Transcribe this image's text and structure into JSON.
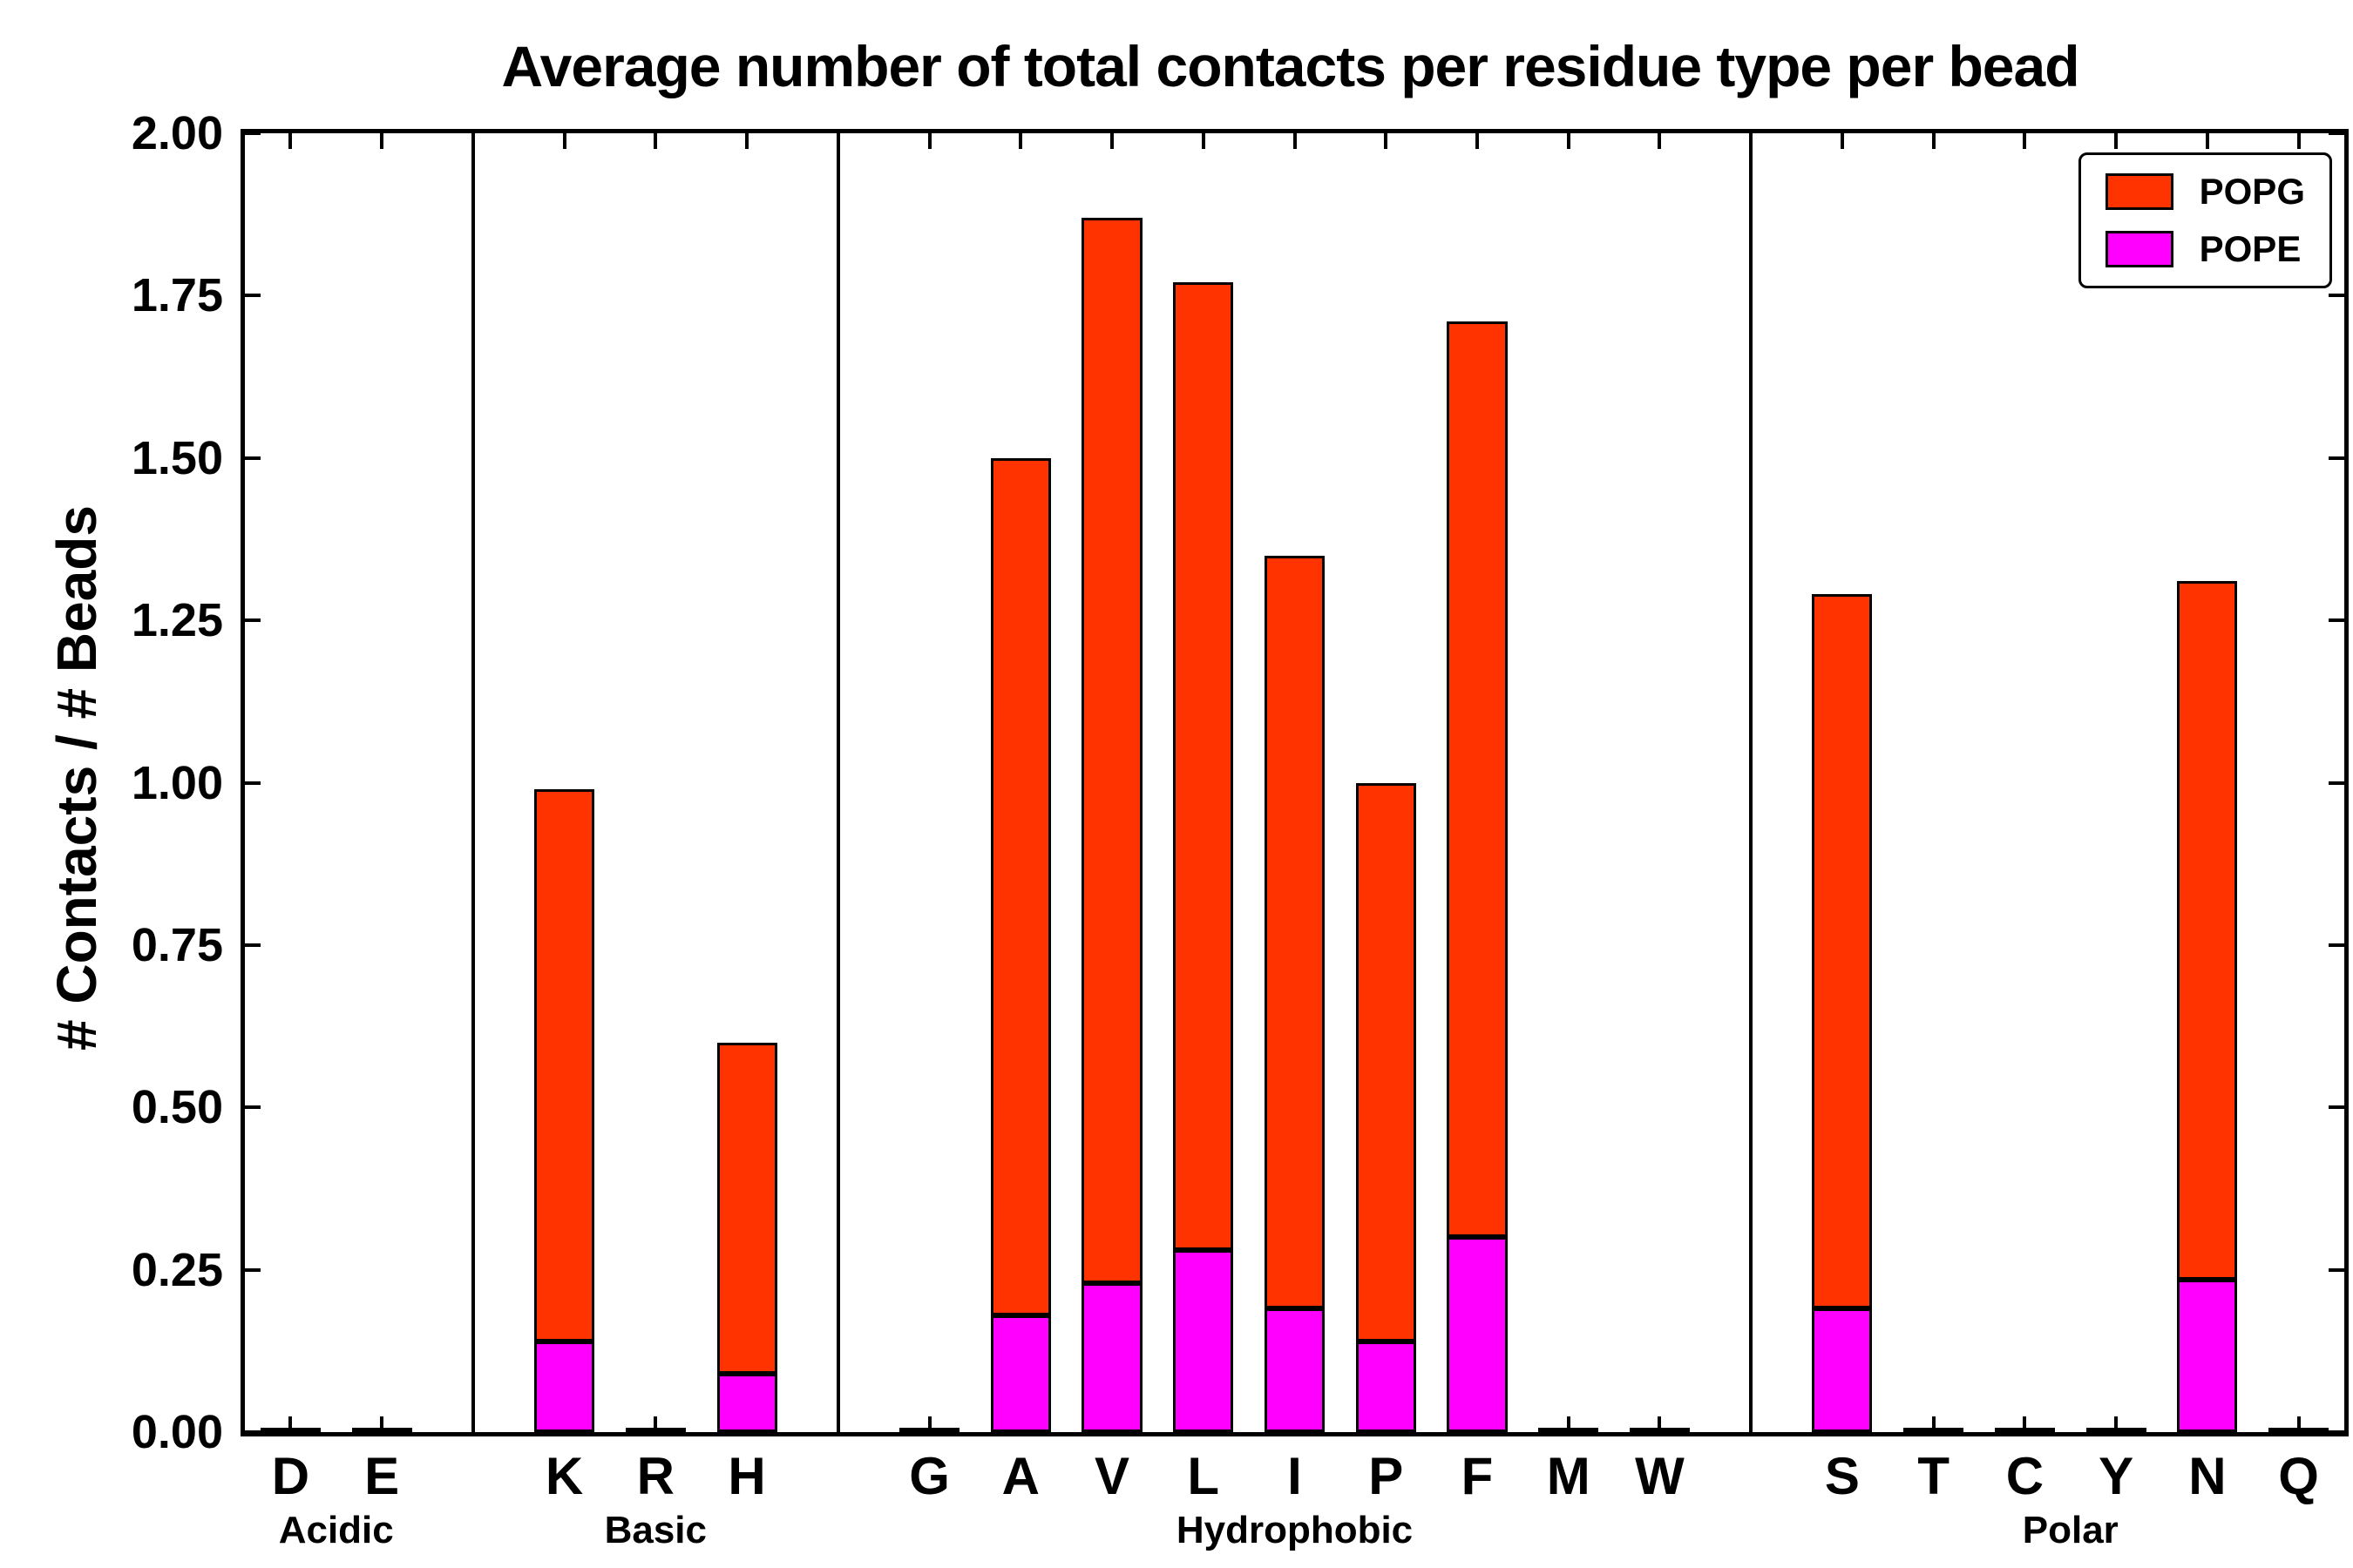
{
  "chart_data": {
    "type": "bar",
    "stacked": true,
    "title": "Average number of total contacts per residue type per bead",
    "ylabel": "# Contacts / # Beads",
    "xlabel": "",
    "ylim": [
      0,
      2.0
    ],
    "ytick_step": 0.25,
    "yticks": [
      "0.00",
      "0.25",
      "0.50",
      "0.75",
      "1.00",
      "1.25",
      "1.50",
      "1.75",
      "2.00"
    ],
    "grid": false,
    "groups": [
      {
        "label": "Acidic",
        "categories": [
          "D",
          "E"
        ]
      },
      {
        "label": "Basic",
        "categories": [
          "K",
          "R",
          "H"
        ]
      },
      {
        "label": "Hydrophobic",
        "categories": [
          "G",
          "A",
          "V",
          "L",
          "I",
          "P",
          "F",
          "M",
          "W"
        ]
      },
      {
        "label": "Polar",
        "categories": [
          "S",
          "T",
          "C",
          "Y",
          "N",
          "Q"
        ]
      }
    ],
    "series": [
      {
        "name": "POPE",
        "color": "#FF00FF",
        "values": {
          "D": 0,
          "E": 0,
          "K": 0.14,
          "R": 0,
          "H": 0.09,
          "G": 0,
          "A": 0.18,
          "V": 0.23,
          "L": 0.28,
          "I": 0.19,
          "P": 0.14,
          "F": 0.3,
          "M": 0,
          "W": 0,
          "S": 0.19,
          "T": 0,
          "C": 0,
          "Y": 0,
          "N": 0.235,
          "Q": 0
        }
      },
      {
        "name": "POPG",
        "color": "#FF3300",
        "values": {
          "D": 0,
          "E": 0,
          "K": 0.85,
          "R": 0,
          "H": 0.51,
          "G": 0,
          "A": 1.32,
          "V": 1.64,
          "L": 1.49,
          "I": 1.16,
          "P": 0.86,
          "F": 1.41,
          "M": 0,
          "W": 0,
          "S": 1.1,
          "T": 0,
          "C": 0,
          "Y": 0,
          "N": 1.075,
          "Q": 0
        }
      }
    ],
    "totals": {
      "D": 0,
      "E": 0,
      "K": 0.99,
      "R": 0,
      "H": 0.6,
      "G": 0,
      "A": 1.5,
      "V": 1.87,
      "L": 1.77,
      "I": 1.35,
      "P": 1.0,
      "F": 1.71,
      "M": 0,
      "W": 0,
      "S": 1.29,
      "T": 0,
      "C": 0,
      "Y": 0,
      "N": 1.31,
      "Q": 0
    },
    "legend": {
      "position": "upper right",
      "entries": [
        "POPG",
        "POPE"
      ]
    },
    "axis_color": "#000000",
    "background_color": "#ffffff"
  }
}
